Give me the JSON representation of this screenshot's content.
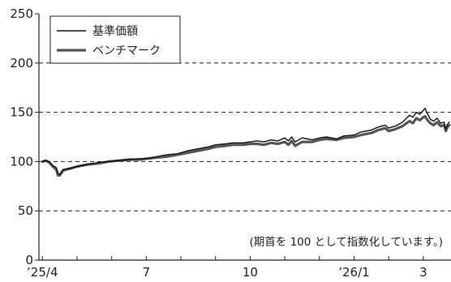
{
  "chart_data": {
    "type": "line",
    "ylim": [
      0,
      250
    ],
    "yticks": [
      0,
      50,
      100,
      150,
      200,
      250
    ],
    "xtick_labels": [
      {
        "label": "’25/4",
        "x": 0
      },
      {
        "label": "7",
        "x": 3
      },
      {
        "label": "10",
        "x": 6
      },
      {
        "label": "’26/1",
        "x": 9
      },
      {
        "label": "3",
        "x": 11
      }
    ],
    "x_unit": "months since 2025-04",
    "xlim": [
      -0.1,
      11.8
    ],
    "grid": "horizontal-dashed",
    "legend_position": "top-left",
    "annotation": "(期首を 100 として指数化しています。)",
    "series": [
      {
        "name": "基準価額",
        "color": "#111111",
        "style": "thin",
        "points": [
          [
            0.0,
            100
          ],
          [
            0.1,
            101
          ],
          [
            0.2,
            100
          ],
          [
            0.3,
            96
          ],
          [
            0.4,
            94
          ],
          [
            0.45,
            88
          ],
          [
            0.5,
            87
          ],
          [
            0.6,
            92
          ],
          [
            0.8,
            93
          ],
          [
            1.0,
            95
          ],
          [
            1.3,
            97
          ],
          [
            1.6,
            99
          ],
          [
            1.9,
            100
          ],
          [
            2.2,
            101
          ],
          [
            2.5,
            102
          ],
          [
            2.8,
            103
          ],
          [
            3.0,
            103
          ],
          [
            3.3,
            105
          ],
          [
            3.6,
            107
          ],
          [
            3.9,
            108
          ],
          [
            4.2,
            111
          ],
          [
            4.5,
            113
          ],
          [
            4.8,
            115
          ],
          [
            5.0,
            117
          ],
          [
            5.3,
            118
          ],
          [
            5.5,
            119
          ],
          [
            5.8,
            119
          ],
          [
            6.0,
            120
          ],
          [
            6.2,
            121
          ],
          [
            6.4,
            120
          ],
          [
            6.6,
            122
          ],
          [
            6.8,
            121
          ],
          [
            7.0,
            124
          ],
          [
            7.1,
            121
          ],
          [
            7.2,
            125
          ],
          [
            7.3,
            120
          ],
          [
            7.5,
            124
          ],
          [
            7.8,
            122
          ],
          [
            8.0,
            124
          ],
          [
            8.2,
            125
          ],
          [
            8.5,
            123
          ],
          [
            8.7,
            126
          ],
          [
            9.0,
            127
          ],
          [
            9.2,
            130
          ],
          [
            9.5,
            132
          ],
          [
            9.7,
            135
          ],
          [
            9.9,
            137
          ],
          [
            10.0,
            134
          ],
          [
            10.2,
            136
          ],
          [
            10.4,
            140
          ],
          [
            10.6,
            147
          ],
          [
            10.7,
            145
          ],
          [
            10.8,
            150
          ],
          [
            10.9,
            148
          ],
          [
            11.0,
            152
          ],
          [
            11.05,
            154
          ],
          [
            11.1,
            150
          ],
          [
            11.2,
            143
          ],
          [
            11.3,
            141
          ],
          [
            11.4,
            144
          ],
          [
            11.5,
            139
          ],
          [
            11.6,
            140
          ],
          [
            11.65,
            133
          ],
          [
            11.7,
            138
          ],
          [
            11.75,
            140
          ]
        ]
      },
      {
        "name": "ベンチマーク",
        "color": "#555555",
        "style": "thick",
        "points": [
          [
            0.0,
            100
          ],
          [
            0.1,
            101
          ],
          [
            0.2,
            99
          ],
          [
            0.3,
            95
          ],
          [
            0.4,
            92
          ],
          [
            0.45,
            86
          ],
          [
            0.5,
            86
          ],
          [
            0.6,
            91
          ],
          [
            0.8,
            93
          ],
          [
            1.0,
            95
          ],
          [
            1.3,
            97
          ],
          [
            1.6,
            98
          ],
          [
            1.9,
            100
          ],
          [
            2.2,
            101
          ],
          [
            2.5,
            102
          ],
          [
            2.8,
            102
          ],
          [
            3.0,
            103
          ],
          [
            3.3,
            104
          ],
          [
            3.6,
            105
          ],
          [
            3.9,
            107
          ],
          [
            4.2,
            109
          ],
          [
            4.5,
            111
          ],
          [
            4.8,
            113
          ],
          [
            5.0,
            115
          ],
          [
            5.3,
            116
          ],
          [
            5.5,
            117
          ],
          [
            5.8,
            117
          ],
          [
            6.0,
            118
          ],
          [
            6.2,
            118
          ],
          [
            6.4,
            117
          ],
          [
            6.6,
            119
          ],
          [
            6.8,
            118
          ],
          [
            7.0,
            120
          ],
          [
            7.1,
            117
          ],
          [
            7.2,
            121
          ],
          [
            7.3,
            116
          ],
          [
            7.5,
            120
          ],
          [
            7.8,
            120
          ],
          [
            8.0,
            122
          ],
          [
            8.2,
            123
          ],
          [
            8.5,
            122
          ],
          [
            8.7,
            124
          ],
          [
            9.0,
            125
          ],
          [
            9.2,
            127
          ],
          [
            9.5,
            129
          ],
          [
            9.7,
            132
          ],
          [
            9.9,
            134
          ],
          [
            10.0,
            131
          ],
          [
            10.2,
            133
          ],
          [
            10.4,
            136
          ],
          [
            10.6,
            141
          ],
          [
            10.7,
            139
          ],
          [
            10.8,
            144
          ],
          [
            10.9,
            142
          ],
          [
            11.0,
            145
          ],
          [
            11.05,
            146
          ],
          [
            11.1,
            143
          ],
          [
            11.2,
            139
          ],
          [
            11.3,
            137
          ],
          [
            11.4,
            140
          ],
          [
            11.5,
            136
          ],
          [
            11.6,
            137
          ],
          [
            11.65,
            131
          ],
          [
            11.7,
            135
          ],
          [
            11.75,
            137
          ]
        ]
      }
    ]
  }
}
